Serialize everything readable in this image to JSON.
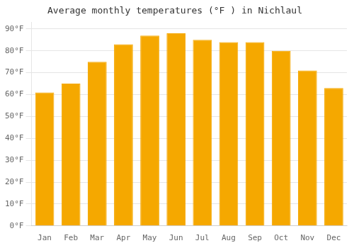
{
  "chart_data": {
    "type": "bar",
    "title": "Average monthly temperatures (°F ) in Nichlaul",
    "categories": [
      "Jan",
      "Feb",
      "Mar",
      "Apr",
      "May",
      "Jun",
      "Jul",
      "Aug",
      "Sep",
      "Oct",
      "Nov",
      "Dec"
    ],
    "values": [
      61,
      65,
      75,
      83,
      87,
      88,
      85,
      84,
      84,
      80,
      71,
      63
    ],
    "color": "#F5A800",
    "ylim": [
      0,
      93
    ],
    "yticks": [
      {
        "value": 0,
        "label": "0°F"
      },
      {
        "value": 10,
        "label": "10°F"
      },
      {
        "value": 20,
        "label": "20°F"
      },
      {
        "value": 30,
        "label": "30°F"
      },
      {
        "value": 40,
        "label": "40°F"
      },
      {
        "value": 50,
        "label": "50°F"
      },
      {
        "value": 60,
        "label": "60°F"
      },
      {
        "value": 70,
        "label": "70°F"
      },
      {
        "value": 80,
        "label": "80°F"
      },
      {
        "value": 90,
        "label": "90°F"
      }
    ],
    "grid": true
  }
}
